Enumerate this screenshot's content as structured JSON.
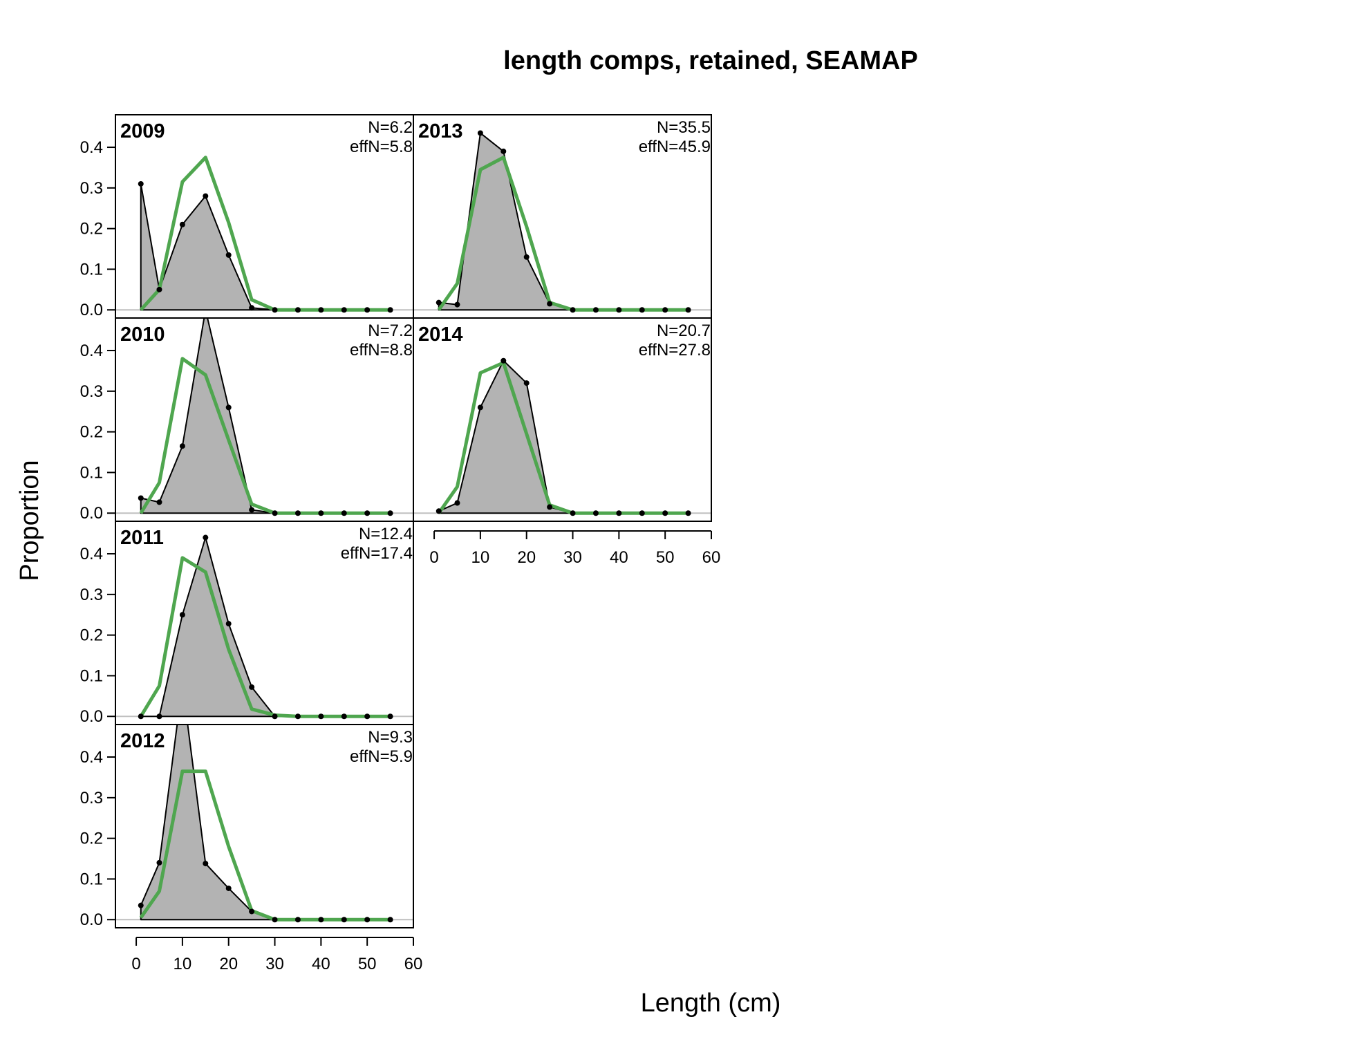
{
  "chart_data": {
    "type": "line",
    "title": "length comps, retained, SEAMAP",
    "xlabel": "Length (cm)",
    "ylabel": "Proportion",
    "xlim": [
      -4.5,
      60
    ],
    "ylim": [
      -0.02,
      0.48
    ],
    "x_ticks": [
      0,
      10,
      20,
      30,
      40,
      50,
      60
    ],
    "y_ticks": [
      0.0,
      0.1,
      0.2,
      0.3,
      0.4
    ],
    "x_tick_labels": [
      "0",
      "10",
      "20",
      "30",
      "40",
      "50",
      "60"
    ],
    "y_tick_labels": [
      "0.0",
      "0.1",
      "0.2",
      "0.3",
      "0.4"
    ],
    "length_bins": [
      1,
      5,
      10,
      15,
      20,
      25,
      30,
      35,
      40,
      45,
      50,
      55
    ],
    "colors": {
      "observed_fill": "#b3b3b3",
      "observed_line": "#000000",
      "expected_line": "#4fa64f",
      "zero_line": "#bfbfbf"
    },
    "panels": [
      {
        "year": "2009",
        "n_label": "N=6.2",
        "effn_label": "effN=5.8",
        "observed": [
          0.31,
          0.05,
          0.21,
          0.28,
          0.135,
          0.005,
          0,
          0,
          0,
          0,
          0,
          0
        ],
        "expected": [
          0.0,
          0.05,
          0.315,
          0.375,
          0.215,
          0.025,
          0,
          0,
          0,
          0,
          0,
          0
        ]
      },
      {
        "year": "2010",
        "n_label": "N=7.2",
        "effn_label": "effN=8.8",
        "observed": [
          0.037,
          0.027,
          0.165,
          0.5,
          0.26,
          0.008,
          0,
          0,
          0,
          0,
          0,
          0
        ],
        "expected": [
          0.0,
          0.075,
          0.38,
          0.34,
          0.18,
          0.022,
          0,
          0,
          0,
          0,
          0,
          0
        ]
      },
      {
        "year": "2011",
        "n_label": "N=12.4",
        "effn_label": "effN=17.4",
        "observed": [
          0,
          0,
          0.25,
          0.44,
          0.228,
          0.072,
          0,
          0,
          0,
          0,
          0,
          0
        ],
        "expected": [
          0.0,
          0.075,
          0.39,
          0.355,
          0.165,
          0.018,
          0.003,
          0,
          0,
          0,
          0,
          0
        ]
      },
      {
        "year": "2012",
        "n_label": "N=9.3",
        "effn_label": "effN=5.9",
        "observed": [
          0.035,
          0.14,
          0.58,
          0.138,
          0.077,
          0.02,
          0,
          0,
          0,
          0,
          0,
          0
        ],
        "expected": [
          0.005,
          0.07,
          0.365,
          0.365,
          0.18,
          0.022,
          0,
          0,
          0,
          0,
          0,
          0
        ]
      },
      {
        "year": "2013",
        "n_label": "N=35.5",
        "effn_label": "effN=45.9",
        "observed": [
          0.018,
          0.013,
          0.435,
          0.39,
          0.13,
          0.015,
          0,
          0,
          0,
          0,
          0,
          0
        ],
        "expected": [
          0.0,
          0.065,
          0.345,
          0.375,
          0.205,
          0.018,
          0,
          0,
          0,
          0,
          0,
          0
        ]
      },
      {
        "year": "2014",
        "n_label": "N=20.7",
        "effn_label": "effN=27.8",
        "observed": [
          0.005,
          0.025,
          0.26,
          0.375,
          0.32,
          0.015,
          0,
          0,
          0,
          0,
          0,
          0
        ],
        "expected": [
          0.0,
          0.065,
          0.345,
          0.37,
          0.195,
          0.02,
          0,
          0,
          0,
          0,
          0,
          0
        ]
      }
    ]
  }
}
